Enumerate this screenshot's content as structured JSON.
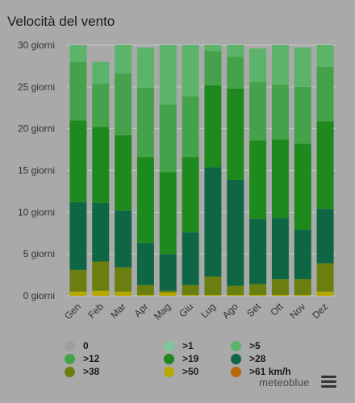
{
  "title": "Velocità del vento",
  "brand": "meteoblue",
  "menu_icon": "hamburger-menu-icon",
  "legend": [
    {
      "label": "0",
      "color": "#9e9e9e"
    },
    {
      "label": ">1",
      "color": "#7ec8a0"
    },
    {
      "label": ">5",
      "color": "#5cb46a"
    },
    {
      "label": ">12",
      "color": "#44a34a"
    },
    {
      "label": ">19",
      "color": "#1e8a1e"
    },
    {
      "label": ">28",
      "color": "#0f6645"
    },
    {
      "label": ">38",
      "color": "#6b7f10"
    },
    {
      "label": ">50",
      "color": "#b6a800"
    },
    {
      "label": ">61 km/h",
      "color": "#b5690a"
    }
  ],
  "chart_data": {
    "type": "bar",
    "stacked": true,
    "title": "Velocità del vento",
    "categories": [
      "Gen",
      "Feb",
      "Mar",
      "Apr",
      "Mag",
      "Giu",
      "Lug",
      "Ago",
      "Set",
      "Ott",
      "Nov",
      "Dez"
    ],
    "yticks": [
      "0 giorni",
      "5 giorni",
      "10 giorni",
      "15 giorni",
      "20 giorni",
      "25 giorni",
      "30 giorni"
    ],
    "ylim": [
      0,
      30
    ],
    "grid": true,
    "series": [
      {
        "name": "0",
        "color": "#9e9e9e",
        "values": [
          0,
          0,
          0,
          0,
          0,
          0,
          0,
          0,
          0,
          0,
          0,
          0
        ]
      },
      {
        "name": ">1",
        "color": "#7ec8a0",
        "values": [
          0,
          0,
          0,
          0,
          0,
          0,
          0,
          0,
          0,
          0,
          0,
          0
        ]
      },
      {
        "name": ">50",
        "color": "#b6a800",
        "values": [
          0.5,
          0.6,
          0.5,
          0.1,
          0.4,
          0.1,
          0.1,
          0.1,
          0.1,
          0.1,
          0.1,
          0.5
        ]
      },
      {
        "name": ">38",
        "color": "#6b7f10",
        "values": [
          2.6,
          3.5,
          2.9,
          1.2,
          0.2,
          1.2,
          2.2,
          1.1,
          1.3,
          1.9,
          1.9,
          3.4
        ]
      },
      {
        "name": ">28",
        "color": "#0f6645",
        "values": [
          8.1,
          7.0,
          6.8,
          5.0,
          4.4,
          6.3,
          13.1,
          12.7,
          7.8,
          7.3,
          5.9,
          6.5
        ]
      },
      {
        "name": ">19",
        "color": "#1e8a1e",
        "values": [
          9.8,
          9.1,
          9.0,
          10.3,
          9.8,
          9.0,
          9.8,
          10.9,
          9.4,
          9.4,
          10.3,
          10.5
        ]
      },
      {
        "name": ">12",
        "color": "#44a34a",
        "values": [
          7.0,
          5.2,
          7.4,
          8.3,
          8.1,
          7.3,
          4.1,
          3.8,
          7.0,
          6.6,
          6.8,
          6.5
        ]
      },
      {
        "name": ">5",
        "color": "#5cb46a",
        "values": [
          2.0,
          2.6,
          3.4,
          4.8,
          7.1,
          6.1,
          0.7,
          1.4,
          4.0,
          4.7,
          4.7,
          2.6
        ]
      }
    ]
  }
}
